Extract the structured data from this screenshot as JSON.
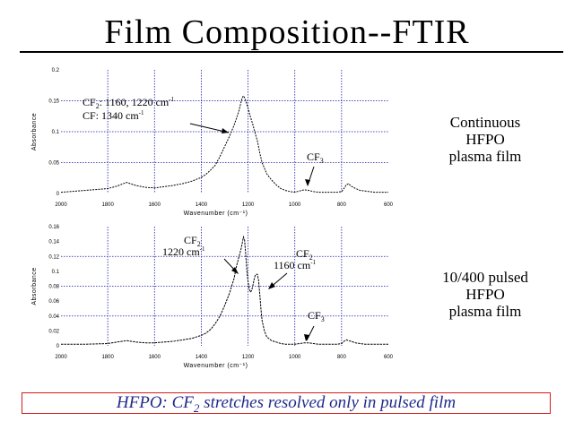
{
  "title": "Film Composition--FTIR",
  "side_labels": [
    {
      "lines": [
        "Continuous",
        "HFPO",
        "plasma film"
      ]
    },
    {
      "lines": [
        "10/400 pulsed",
        "HFPO",
        "plasma film"
      ]
    }
  ],
  "footer": {
    "prefix": "HFPO:  CF",
    "sub": "2",
    "suffix": " stretches resolved only in pulsed film"
  },
  "colors": {
    "grid": "#1a1aa8",
    "footer_text": "#1f2a8c",
    "footer_border": "#d41b1b",
    "trace": "#000000"
  },
  "chart_data": [
    {
      "type": "line",
      "title": "",
      "xlabel": "Wavenumber (cm⁻¹)",
      "ylabel": "Absorbance",
      "xlim": [
        2000,
        600
      ],
      "ylim": [
        0,
        0.2
      ],
      "x_ticks": [
        "2000",
        "1800",
        "1600",
        "1400",
        "1200",
        "1000",
        "800",
        "600"
      ],
      "y_ticks": [
        "0",
        "0.05",
        "0.1",
        "0.15",
        "0.2"
      ],
      "grid": true,
      "x": [
        2000,
        1900,
        1800,
        1760,
        1720,
        1680,
        1640,
        1600,
        1560,
        1520,
        1480,
        1440,
        1400,
        1380,
        1360,
        1340,
        1320,
        1300,
        1280,
        1260,
        1240,
        1230,
        1225,
        1220,
        1215,
        1210,
        1200,
        1190,
        1180,
        1170,
        1160,
        1150,
        1140,
        1120,
        1100,
        1080,
        1060,
        1040,
        1020,
        1000,
        980,
        960,
        940,
        920,
        900,
        880,
        860,
        840,
        820,
        800,
        790,
        780,
        770,
        760,
        740,
        720,
        700,
        680,
        660,
        640,
        620,
        600
      ],
      "y": [
        0.002,
        0.005,
        0.008,
        0.012,
        0.018,
        0.013,
        0.01,
        0.009,
        0.011,
        0.013,
        0.016,
        0.02,
        0.026,
        0.031,
        0.038,
        0.046,
        0.06,
        0.076,
        0.092,
        0.11,
        0.132,
        0.148,
        0.155,
        0.158,
        0.155,
        0.15,
        0.138,
        0.124,
        0.112,
        0.098,
        0.085,
        0.066,
        0.05,
        0.032,
        0.022,
        0.014,
        0.008,
        0.005,
        0.003,
        0.002,
        0.004,
        0.006,
        0.005,
        0.003,
        0.002,
        0.002,
        0.002,
        0.002,
        0.002,
        0.003,
        0.008,
        0.014,
        0.016,
        0.012,
        0.008,
        0.005,
        0.004,
        0.003,
        0.002,
        0.002,
        0.002,
        0.002
      ],
      "annotations": [
        {
          "text": "CF",
          "sub": "2",
          "rest": ":  1160, 1220 cm",
          "sup": "-1"
        },
        {
          "text": "CF:  1340 cm",
          "sup": "-1"
        },
        {
          "text": "CF",
          "sub": "3"
        }
      ]
    },
    {
      "type": "line",
      "title": "",
      "xlabel": "Wavenumber (cm⁻¹)",
      "ylabel": "Absorbance",
      "xlim": [
        2000,
        600
      ],
      "ylim": [
        0,
        0.16
      ],
      "x_ticks": [
        "2000",
        "1800",
        "1600",
        "1400",
        "1200",
        "1000",
        "800",
        "600"
      ],
      "y_ticks": [
        "0",
        "0.02",
        "0.04",
        "0.06",
        "0.08",
        "0.1",
        "0.12",
        "0.14",
        "0.16"
      ],
      "grid": true,
      "x": [
        2000,
        1900,
        1800,
        1760,
        1720,
        1680,
        1640,
        1600,
        1560,
        1520,
        1480,
        1440,
        1400,
        1380,
        1360,
        1340,
        1320,
        1300,
        1280,
        1260,
        1250,
        1240,
        1230,
        1225,
        1220,
        1215,
        1210,
        1205,
        1200,
        1195,
        1190,
        1185,
        1180,
        1175,
        1170,
        1165,
        1160,
        1155,
        1150,
        1145,
        1140,
        1130,
        1120,
        1100,
        1080,
        1060,
        1040,
        1020,
        1000,
        980,
        960,
        940,
        920,
        900,
        880,
        860,
        840,
        820,
        800,
        790,
        780,
        770,
        760,
        740,
        720,
        700,
        680,
        660,
        640,
        620,
        600
      ],
      "y": [
        0.002,
        0.002,
        0.003,
        0.005,
        0.007,
        0.005,
        0.004,
        0.004,
        0.005,
        0.006,
        0.008,
        0.01,
        0.014,
        0.017,
        0.022,
        0.03,
        0.04,
        0.054,
        0.07,
        0.09,
        0.106,
        0.118,
        0.13,
        0.138,
        0.146,
        0.142,
        0.122,
        0.1,
        0.086,
        0.076,
        0.072,
        0.074,
        0.08,
        0.088,
        0.094,
        0.096,
        0.096,
        0.088,
        0.07,
        0.05,
        0.034,
        0.02,
        0.012,
        0.007,
        0.005,
        0.003,
        0.002,
        0.002,
        0.002,
        0.003,
        0.004,
        0.004,
        0.003,
        0.002,
        0.002,
        0.002,
        0.002,
        0.002,
        0.003,
        0.006,
        0.008,
        0.007,
        0.006,
        0.004,
        0.003,
        0.002,
        0.002,
        0.002,
        0.002,
        0.002,
        0.002
      ],
      "annotations": [
        {
          "text": "CF",
          "sub": "2"
        },
        {
          "text": "1220 cm",
          "sup": "-1"
        },
        {
          "text": "CF",
          "sub": "2"
        },
        {
          "text": "1160 cm",
          "sup": "-1"
        },
        {
          "text": "CF",
          "sub": "3"
        }
      ]
    }
  ]
}
